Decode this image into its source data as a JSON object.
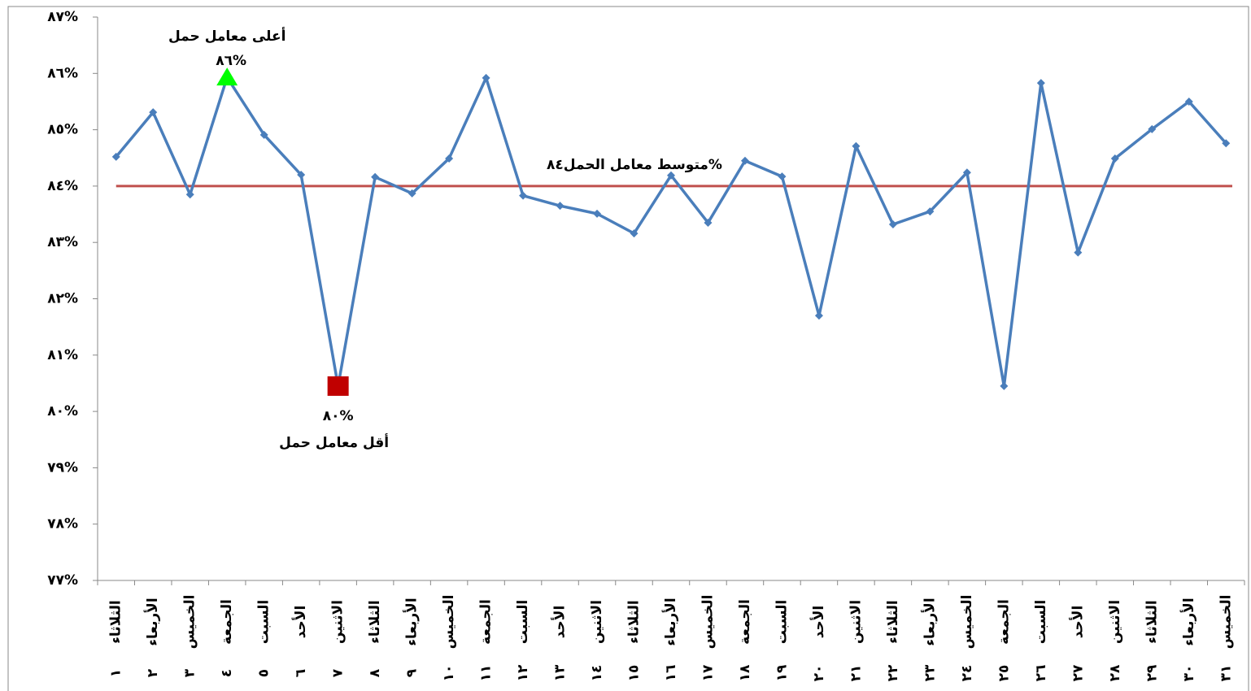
{
  "chart_data": {
    "type": "line",
    "categories": [
      "الثلاثاء",
      "الأربعاء",
      "الخميس",
      "الجمعة",
      "السبت",
      "الأحد",
      "الاثنين",
      "الثلاثاء",
      "الأربعاء",
      "الخميس",
      "الجمعة",
      "السبت",
      "الأحد",
      "الاثنين",
      "الثلاثاء",
      "الأربعاء",
      "الخميس",
      "الجمعة",
      "السبت",
      "الأحد",
      "الاثنين",
      "الثلاثاء",
      "الأربعاء",
      "الخميس",
      "الجمعة",
      "السبت",
      "الأحد",
      "الاثنين",
      "الثلاثاء",
      "الأربعاء",
      "الخميس"
    ],
    "category_numbers": [
      "١",
      "٢",
      "٣",
      "٤",
      "٥",
      "٦",
      "٧",
      "٨",
      "٩",
      "١٠",
      "١١",
      "١٢",
      "١٣",
      "١٤",
      "١٥",
      "١٦",
      "١٧",
      "١٨",
      "١٩",
      "٢٠",
      "٢١",
      "٢٢",
      "٢٣",
      "٢٤",
      "٢٥",
      "٢٦",
      "٢٧",
      "٢٨",
      "٢٩",
      "٣٠",
      "٣١"
    ],
    "values": [
      84.52,
      85.31,
      83.85,
      85.93,
      84.91,
      84.2,
      80.45,
      84.16,
      83.87,
      84.49,
      85.92,
      83.83,
      83.65,
      83.51,
      83.16,
      84.19,
      83.35,
      84.45,
      84.17,
      81.7,
      84.71,
      83.32,
      83.55,
      84.24,
      80.45,
      85.83,
      82.82,
      84.49,
      85.01,
      85.5,
      84.76
    ],
    "color": "#4a7ebb",
    "ylim": [
      77,
      87
    ],
    "yticks": [
      {
        "value": 77,
        "label": "٧٧%"
      },
      {
        "value": 78,
        "label": "٧٨%"
      },
      {
        "value": 79,
        "label": "٧٩%"
      },
      {
        "value": 80,
        "label": "٨٠%"
      },
      {
        "value": 81,
        "label": "٨١%"
      },
      {
        "value": 82,
        "label": "٨٢%"
      },
      {
        "value": 83,
        "label": "٨٣%"
      },
      {
        "value": 84,
        "label": "٨٤%"
      },
      {
        "value": 85,
        "label": "٨٥%"
      },
      {
        "value": 86,
        "label": "٨٦%"
      },
      {
        "value": 87,
        "label": "٨٧%"
      }
    ],
    "average": {
      "value": 84,
      "label": "متوسط معامل الحمل٨٤%",
      "color": "#c0504d"
    },
    "annotations": [
      {
        "text": "أعلى معامل حمل",
        "value_text": "٨٦%",
        "at": "٤",
        "marker": "triangle",
        "color": "#00ff00"
      },
      {
        "text": "أقل معامل حمل",
        "value_text": "٨٠%",
        "at": "٧",
        "marker": "square",
        "color": "#c00000"
      }
    ]
  }
}
